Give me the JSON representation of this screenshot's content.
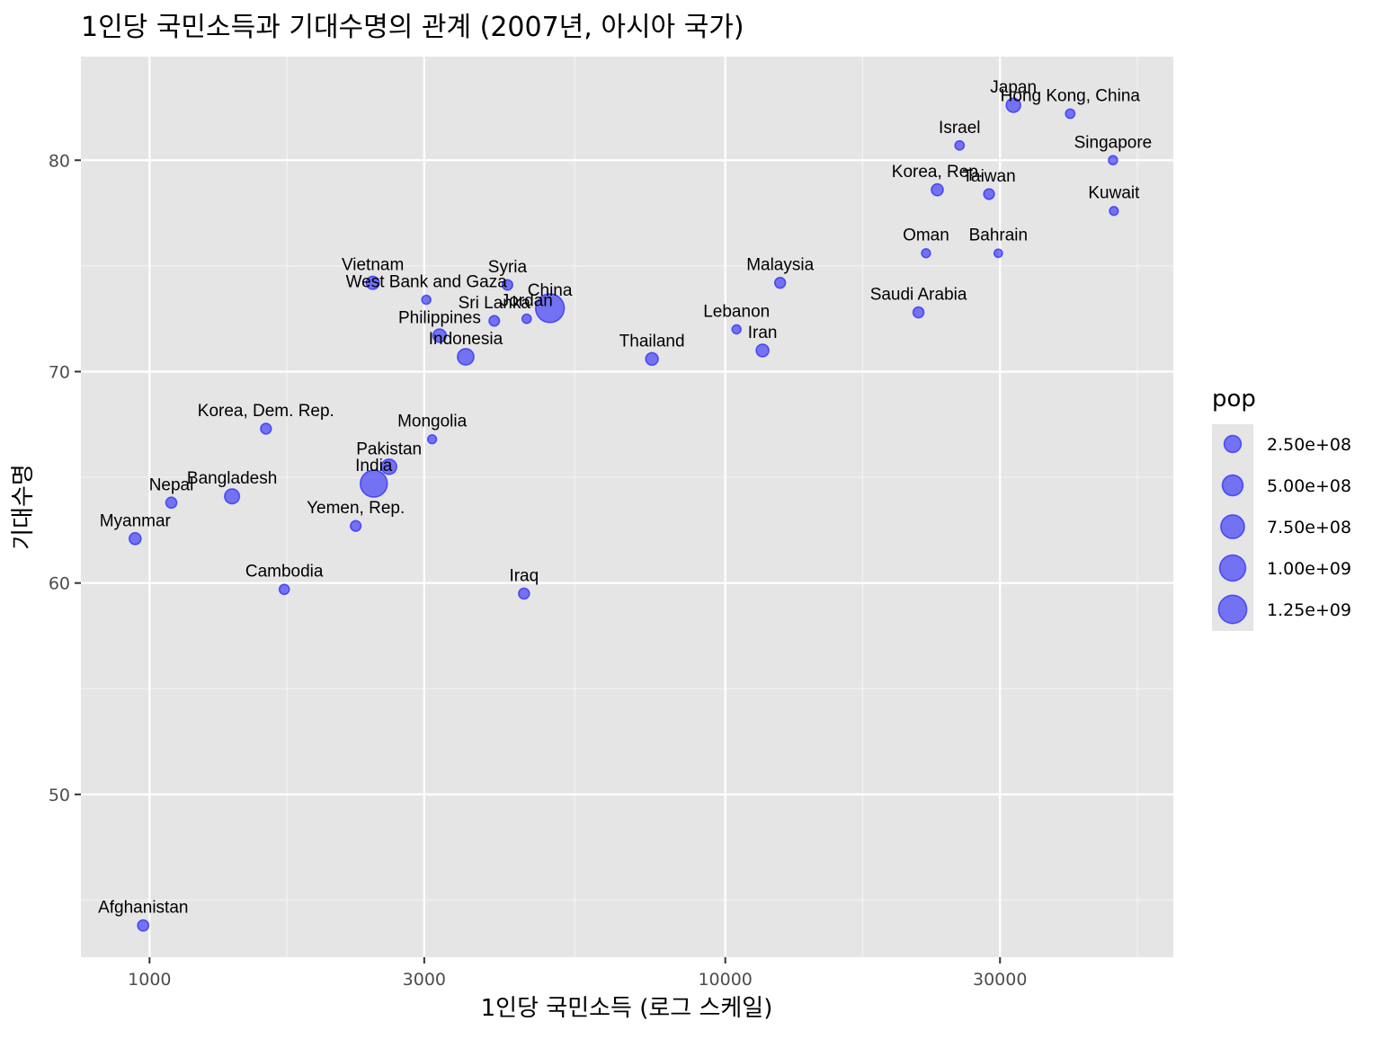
{
  "chart_data": {
    "type": "scatter",
    "title": "1인당 국민소득과 기대수명의 관계 (2007년, 아시아 국가)",
    "xlabel": "1인당 국민소득 (로그 스케일)",
    "ylabel": "기대수명",
    "x_scale": "log10",
    "xlim": [
      760,
      60000
    ],
    "ylim": [
      42.3,
      84.9
    ],
    "x_ticks": [
      1000,
      3000,
      10000,
      30000
    ],
    "x_tick_labels": [
      "1000",
      "3000",
      "10000",
      "30000"
    ],
    "y_ticks": [
      50,
      60,
      70,
      80
    ],
    "y_tick_labels": [
      "50",
      "60",
      "70",
      "80"
    ],
    "grid": true,
    "point_color": "#0000ff",
    "legend": {
      "title": "pop",
      "position": "right",
      "values": [
        250000000,
        500000000,
        750000000,
        1000000000,
        1250000000
      ],
      "labels": [
        "2.50e+08",
        "5.00e+08",
        "7.50e+08",
        "1.00e+09",
        "1.25e+09"
      ]
    },
    "points": [
      {
        "label": "Afghanistan",
        "x": 975,
        "y": 43.8,
        "pop": 31900000
      },
      {
        "label": "Bahrain",
        "x": 29796,
        "y": 75.6,
        "pop": 700000
      },
      {
        "label": "Bangladesh",
        "x": 1391,
        "y": 64.1,
        "pop": 150400000
      },
      {
        "label": "Cambodia",
        "x": 1714,
        "y": 59.7,
        "pop": 14100000
      },
      {
        "label": "China",
        "x": 4959,
        "y": 73.0,
        "pop": 1318700000
      },
      {
        "label": "Hong Kong, China",
        "x": 39725,
        "y": 82.2,
        "pop": 6980000
      },
      {
        "label": "India",
        "x": 2452,
        "y": 64.7,
        "pop": 1110400000
      },
      {
        "label": "Indonesia",
        "x": 3541,
        "y": 70.7,
        "pop": 223500000
      },
      {
        "label": "Iran",
        "x": 11606,
        "y": 71.0,
        "pop": 69500000
      },
      {
        "label": "Iraq",
        "x": 4471,
        "y": 59.5,
        "pop": 27500000
      },
      {
        "label": "Israel",
        "x": 25523,
        "y": 80.7,
        "pop": 6400000
      },
      {
        "label": "Japan",
        "x": 31656,
        "y": 82.6,
        "pop": 127500000
      },
      {
        "label": "Jordan",
        "x": 4519,
        "y": 72.5,
        "pop": 6100000
      },
      {
        "label": "Korea, Dem. Rep.",
        "x": 1593,
        "y": 67.3,
        "pop": 23300000
      },
      {
        "label": "Korea, Rep.",
        "x": 23348,
        "y": 78.6,
        "pop": 49000000
      },
      {
        "label": "Kuwait",
        "x": 47307,
        "y": 77.6,
        "pop": 2500000
      },
      {
        "label": "Lebanon",
        "x": 10461,
        "y": 72.0,
        "pop": 3900000
      },
      {
        "label": "Malaysia",
        "x": 12452,
        "y": 74.2,
        "pop": 24800000
      },
      {
        "label": "Mongolia",
        "x": 3096,
        "y": 66.8,
        "pop": 2900000
      },
      {
        "label": "Myanmar",
        "x": 944,
        "y": 62.1,
        "pop": 47800000
      },
      {
        "label": "Nepal",
        "x": 1091,
        "y": 63.8,
        "pop": 28900000
      },
      {
        "label": "Oman",
        "x": 22316,
        "y": 75.6,
        "pop": 3200000
      },
      {
        "label": "Pakistan",
        "x": 2606,
        "y": 65.5,
        "pop": 169300000
      },
      {
        "label": "Philippines",
        "x": 3190,
        "y": 71.7,
        "pop": 91100000
      },
      {
        "label": "Saudi Arabia",
        "x": 21655,
        "y": 72.8,
        "pop": 27600000
      },
      {
        "label": "Singapore",
        "x": 47143,
        "y": 80.0,
        "pop": 4550000
      },
      {
        "label": "Sri Lanka",
        "x": 3970,
        "y": 72.4,
        "pop": 20400000
      },
      {
        "label": "Syria",
        "x": 4185,
        "y": 74.1,
        "pop": 19300000
      },
      {
        "label": "Taiwan",
        "x": 28718,
        "y": 78.4,
        "pop": 23200000
      },
      {
        "label": "Thailand",
        "x": 7458,
        "y": 70.6,
        "pop": 65100000
      },
      {
        "label": "Vietnam",
        "x": 2442,
        "y": 74.2,
        "pop": 85300000
      },
      {
        "label": "West Bank and Gaza",
        "x": 3025,
        "y": 73.4,
        "pop": 4000000
      },
      {
        "label": "Yemen, Rep.",
        "x": 2281,
        "y": 62.7,
        "pop": 22200000
      }
    ]
  }
}
